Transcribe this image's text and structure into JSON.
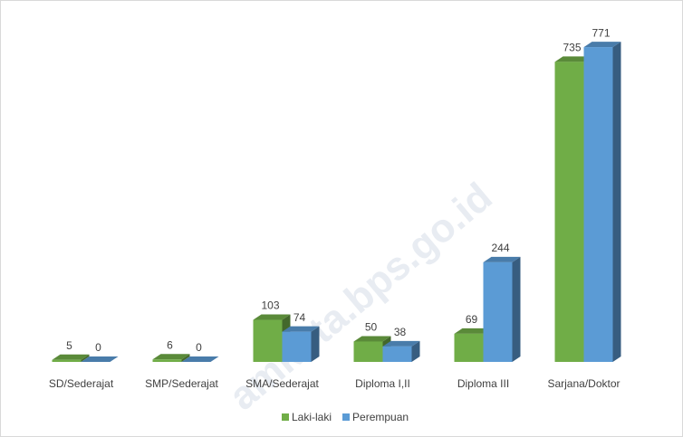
{
  "chart_data": {
    "type": "bar3d",
    "watermark": "amkota.bps.go.id",
    "categories": [
      "SD/Sederajat",
      "SMP/Sederajat",
      "SMA/Sederajat",
      "Diploma I,II",
      "Diploma III",
      "Sarjana/Doktor"
    ],
    "series": [
      {
        "name": "Laki-laki",
        "color": "#70ad47",
        "values": [
          5,
          6,
          103,
          50,
          69,
          735
        ]
      },
      {
        "name": "Perempuan",
        "color": "#5b9bd5",
        "values": [
          0,
          0,
          74,
          38,
          244,
          771
        ]
      }
    ],
    "ylim": [
      0,
      800
    ],
    "legend": "bottom"
  }
}
